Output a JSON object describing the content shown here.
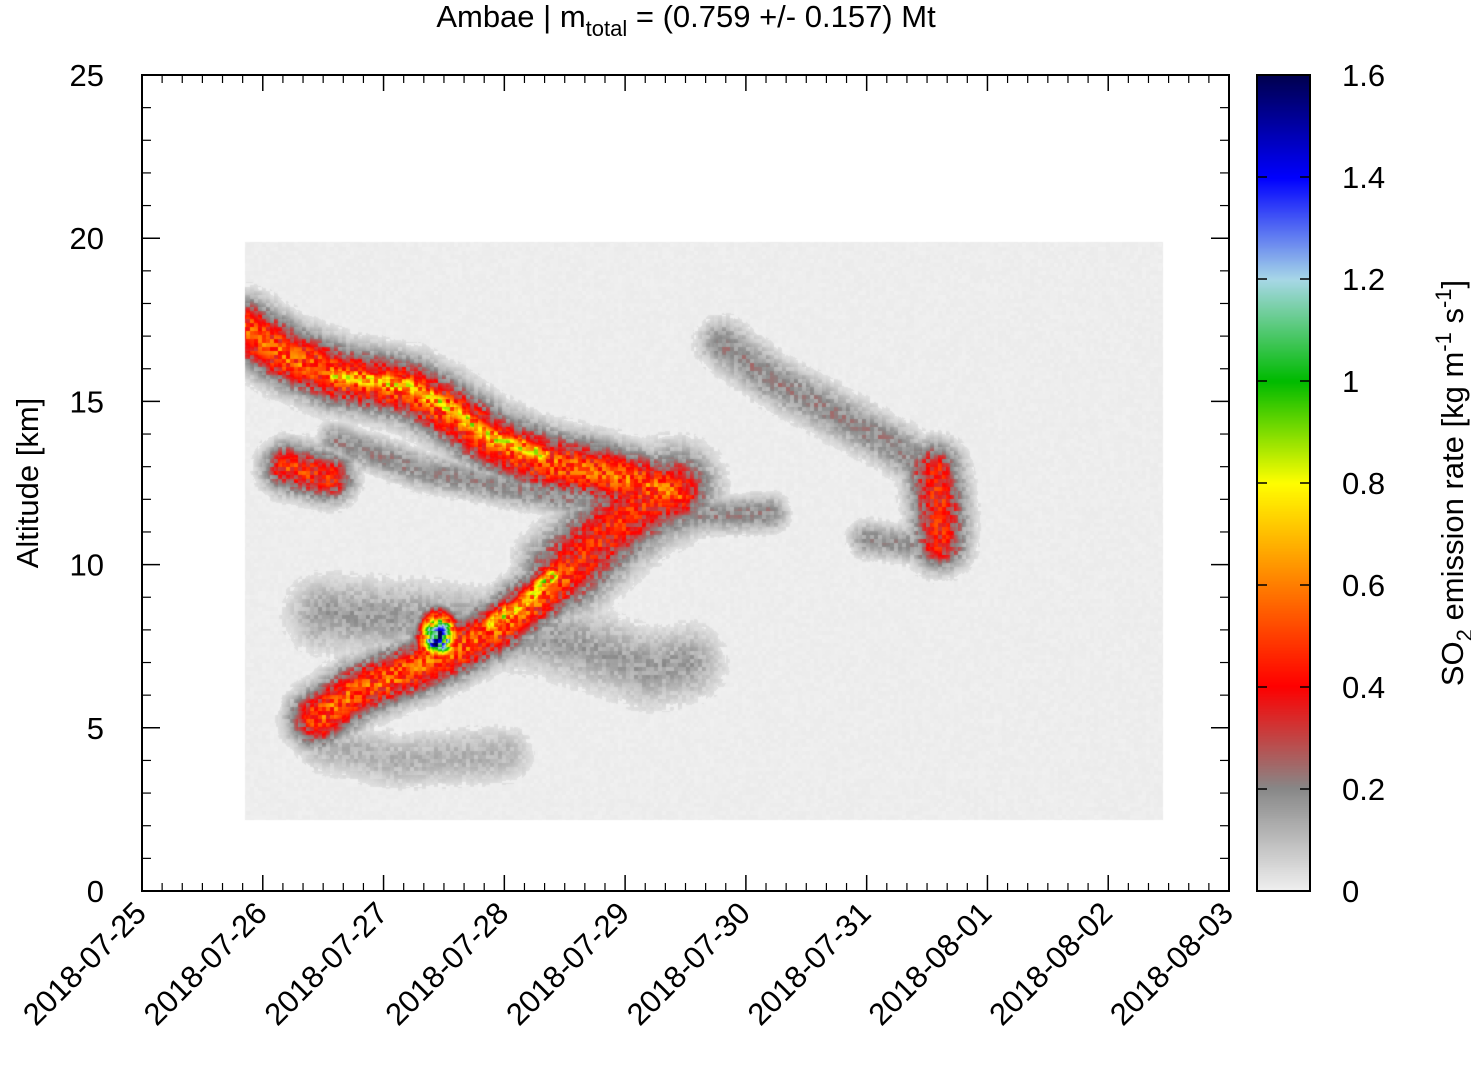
{
  "chart_data": {
    "type": "heatmap",
    "title": {
      "prefix": "Ambae | m",
      "subscript": "total",
      "suffix": " = (0.759 +/- 0.157) Mt"
    },
    "xlabel": "",
    "ylabel": "Altitude [km]",
    "x_ticks": [
      "2018-07-25",
      "2018-07-26",
      "2018-07-27",
      "2018-07-28",
      "2018-07-29",
      "2018-07-30",
      "2018-07-31",
      "2018-08-01",
      "2018-08-02",
      "2018-08-03"
    ],
    "y_ticks": [
      "0",
      "5",
      "10",
      "15",
      "20",
      "25"
    ],
    "x_range_days": [
      0,
      9
    ],
    "ylim": [
      0,
      25
    ],
    "data_extent": {
      "x_days": [
        0.85,
        8.45
      ],
      "y_km": [
        2.2,
        19.9
      ]
    },
    "colorbar": {
      "label_prefix": "SO",
      "label_sub": "2",
      "label_mid": " emission rate [kg m",
      "label_sup1": "-1",
      "label_mid2": " s",
      "label_sup2": "-1",
      "label_suffix": "]",
      "ticks": [
        "0",
        "0.2",
        "0.4",
        "0.6",
        "0.8",
        "1",
        "1.2",
        "1.4",
        "1.6"
      ],
      "range": [
        0,
        1.6
      ],
      "colors": [
        {
          "v": 0.0,
          "c": "#f0f0f0"
        },
        {
          "v": 0.2,
          "c": "#888888"
        },
        {
          "v": 0.4,
          "c": "#ff0000"
        },
        {
          "v": 0.6,
          "c": "#ff7f00"
        },
        {
          "v": 0.8,
          "c": "#ffff00"
        },
        {
          "v": 1.0,
          "c": "#00bb00"
        },
        {
          "v": 1.2,
          "c": "#a8d8e8"
        },
        {
          "v": 1.4,
          "c": "#0000ff"
        },
        {
          "v": 1.6,
          "c": "#000050"
        }
      ]
    },
    "features": [
      {
        "name": "upper plume",
        "points": [
          [
            0.85,
            17.2
          ],
          [
            1.2,
            16.4
          ],
          [
            1.6,
            15.8
          ],
          [
            2.2,
            15.4
          ],
          [
            2.5,
            14.8
          ],
          [
            2.9,
            13.8
          ],
          [
            3.3,
            13.2
          ],
          [
            3.7,
            12.9
          ],
          [
            4.1,
            12.5
          ],
          [
            4.4,
            12.2
          ]
        ],
        "peak": 0.55,
        "width_km": 1.0
      },
      {
        "name": "upper plume core",
        "points": [
          [
            1.6,
            15.8
          ],
          [
            2.2,
            15.5
          ],
          [
            2.5,
            14.9
          ],
          [
            2.9,
            13.9
          ],
          [
            3.3,
            13.4
          ]
        ],
        "peak": 0.75,
        "width_km": 0.45
      },
      {
        "name": "lower plume",
        "points": [
          [
            1.45,
            5.3
          ],
          [
            1.8,
            6.2
          ],
          [
            2.3,
            6.9
          ],
          [
            2.6,
            7.4
          ],
          [
            3.0,
            8.2
          ],
          [
            3.35,
            9.2
          ],
          [
            3.5,
            9.8
          ]
        ],
        "peak": 0.55,
        "width_km": 0.9
      },
      {
        "name": "lower plume core",
        "points": [
          [
            2.9,
            8.2
          ],
          [
            3.2,
            9.0
          ],
          [
            3.4,
            9.7
          ]
        ],
        "peak": 0.78,
        "width_km": 0.4
      },
      {
        "name": "vertical band",
        "points": [
          [
            3.5,
            9.8
          ],
          [
            3.9,
            11.2
          ],
          [
            4.2,
            12.0
          ],
          [
            4.4,
            12.3
          ]
        ],
        "peak": 0.45,
        "width_km": 1.3
      },
      {
        "name": "mid plume",
        "points": [
          [
            1.2,
            13.0
          ],
          [
            1.55,
            12.7
          ]
        ],
        "peak": 0.48,
        "width_km": 0.8
      },
      {
        "name": "mid filament",
        "points": [
          [
            1.6,
            13.8
          ],
          [
            2.3,
            12.9
          ],
          [
            3.0,
            12.4
          ],
          [
            3.6,
            12.0
          ],
          [
            4.6,
            11.5
          ],
          [
            5.2,
            11.6
          ]
        ],
        "peak": 0.2,
        "width_km": 0.6
      },
      {
        "name": "far filament",
        "points": [
          [
            4.8,
            16.8
          ],
          [
            5.2,
            15.7
          ],
          [
            5.7,
            14.7
          ],
          [
            6.2,
            13.7
          ],
          [
            6.5,
            13.0
          ]
        ],
        "peak": 0.2,
        "width_km": 0.8
      },
      {
        "name": "far column",
        "points": [
          [
            6.55,
            12.9
          ],
          [
            6.6,
            11.7
          ],
          [
            6.6,
            10.7
          ]
        ],
        "peak": 0.45,
        "width_km": 0.9
      },
      {
        "name": "far lower",
        "points": [
          [
            6.0,
            10.8
          ],
          [
            6.4,
            10.6
          ]
        ],
        "peak": 0.18,
        "width_km": 0.6
      },
      {
        "name": "lower haze",
        "points": [
          [
            1.5,
            8.5
          ],
          [
            2.4,
            8.3
          ],
          [
            3.4,
            7.8
          ],
          [
            4.2,
            6.8
          ],
          [
            4.5,
            7.0
          ]
        ],
        "peak": 0.16,
        "width_km": 1.2
      },
      {
        "name": "bottom haze",
        "points": [
          [
            1.5,
            4.5
          ],
          [
            2.1,
            4.0
          ],
          [
            3.0,
            4.2
          ]
        ],
        "peak": 0.12,
        "width_km": 0.9
      }
    ],
    "hotspot": {
      "x_days": 2.45,
      "y_km": 7.8,
      "peak": 1.55
    }
  }
}
